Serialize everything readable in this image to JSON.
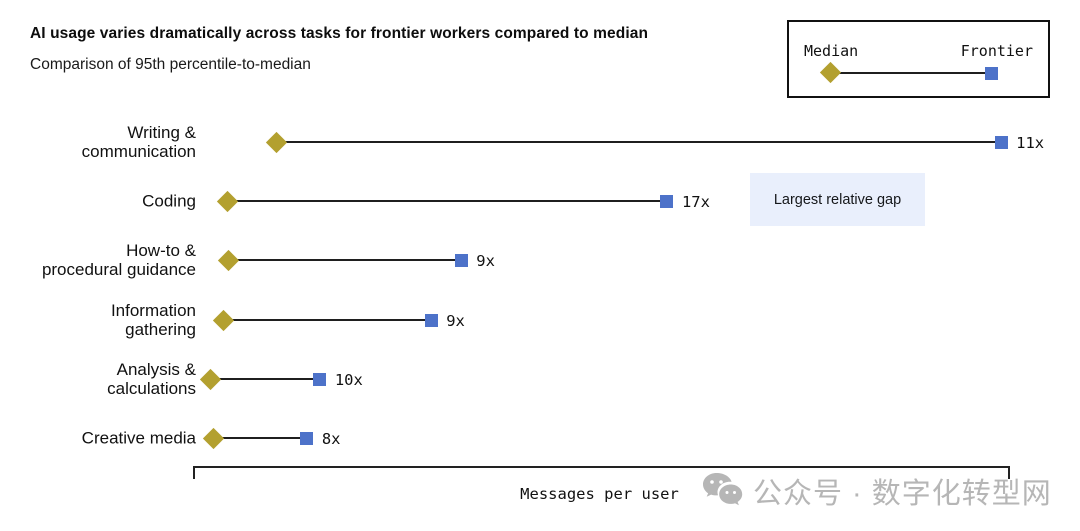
{
  "header": {
    "title": "AI usage varies dramatically across tasks for frontier workers compared to median",
    "subtitle": "Comparison of 95th percentile-to-median"
  },
  "legend": {
    "median_label": "Median",
    "frontier_label": "Frontier"
  },
  "annotation": {
    "text": "Largest relative gap"
  },
  "axis": {
    "label": "Messages per user"
  },
  "watermark": {
    "icon": "wechat-icon",
    "text": "公众号 · 数字化转型网"
  },
  "colors": {
    "median_marker": "#b3a02f",
    "frontier_marker": "#4d72c9",
    "connector": "#1f1f1f",
    "annotation_bg": "#e9effc",
    "watermark": "#b6b6b6"
  },
  "chart_data": {
    "type": "scatter",
    "subtype": "dumbbell-horizontal",
    "title": "AI usage varies dramatically across tasks for frontier workers compared to median",
    "subtitle": "Comparison of 95th percentile-to-median",
    "xlabel": "Messages per user",
    "x_axis_ticks": [],
    "legend_entries": [
      "Median",
      "Frontier"
    ],
    "legend_position": "top-right",
    "annotation": {
      "text": "Largest relative gap",
      "attached_to": "Coding"
    },
    "tasks": [
      {
        "category": "Writing &\ncommunication",
        "ratio": "11x",
        "ratio_value": 11,
        "median_pos_pct": 10.3,
        "frontier_pos_pct": 99.4
      },
      {
        "category": "Coding",
        "ratio": "17x",
        "ratio_value": 17,
        "median_pos_pct": 4.3,
        "frontier_pos_pct": 58.3
      },
      {
        "category": "How-to &\nprocedural guidance",
        "ratio": "9x",
        "ratio_value": 9,
        "median_pos_pct": 4.4,
        "frontier_pos_pct": 33.0
      },
      {
        "category": "Information\ngathering",
        "ratio": "9x",
        "ratio_value": 9,
        "median_pos_pct": 3.8,
        "frontier_pos_pct": 29.3
      },
      {
        "category": "Analysis &\ncalculations",
        "ratio": "10x",
        "ratio_value": 10,
        "median_pos_pct": 2.1,
        "frontier_pos_pct": 15.6
      },
      {
        "category": "Creative media",
        "ratio": "8x",
        "ratio_value": 8,
        "median_pos_pct": 2.5,
        "frontier_pos_pct": 14.0
      }
    ]
  }
}
